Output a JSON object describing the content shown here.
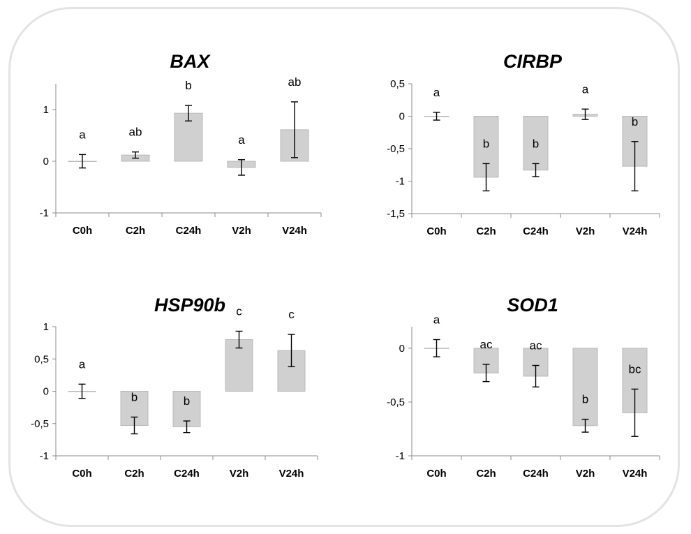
{
  "chart_data": [
    {
      "type": "bar",
      "title": "BAX",
      "categories": [
        "C0h",
        "C2h",
        "C24h",
        "V2h",
        "V24h"
      ],
      "values": [
        0.0,
        0.12,
        0.93,
        -0.12,
        0.61
      ],
      "errors": [
        0.13,
        0.06,
        0.15,
        0.15,
        0.54
      ],
      "significance": [
        "a",
        "ab",
        "b",
        "a",
        "ab"
      ],
      "ylim": [
        -1,
        1.5
      ],
      "yticks": [
        -1,
        0,
        1
      ],
      "ytick_labels": [
        "-1",
        "0",
        "1"
      ],
      "bar_color": "#d0d0d0",
      "grid": false
    },
    {
      "type": "bar",
      "title": "CIRBP",
      "categories": [
        "C0h",
        "C2h",
        "C24h",
        "V2h",
        "V24h"
      ],
      "values": [
        0.0,
        -0.94,
        -0.83,
        0.03,
        -0.77
      ],
      "errors": [
        0.06,
        0.21,
        0.1,
        0.08,
        0.38
      ],
      "significance": [
        "a",
        "b",
        "b",
        "a",
        "b"
      ],
      "ylim": [
        -1.5,
        0.5
      ],
      "yticks": [
        -1.5,
        -1,
        -0.5,
        0,
        0.5
      ],
      "ytick_labels": [
        "-1,5",
        "-1",
        "-0,5",
        "0",
        "0,5"
      ],
      "bar_color": "#d0d0d0",
      "grid": false
    },
    {
      "type": "bar",
      "title": "HSP90b",
      "categories": [
        "C0h",
        "C2h",
        "C24h",
        "V2h",
        "V24h"
      ],
      "values": [
        0.0,
        -0.53,
        -0.55,
        0.8,
        0.63
      ],
      "errors": [
        0.11,
        0.13,
        0.09,
        0.13,
        0.25
      ],
      "significance": [
        "a",
        "b",
        "b",
        "c",
        "c"
      ],
      "ylim": [
        -1,
        1
      ],
      "yticks": [
        -1,
        -0.5,
        0,
        0.5,
        1
      ],
      "ytick_labels": [
        "-1",
        "-0,5",
        "0",
        "0,5",
        "1"
      ],
      "bar_color": "#d0d0d0",
      "grid": false
    },
    {
      "type": "bar",
      "title": "SOD1",
      "categories": [
        "C0h",
        "C2h",
        "C24h",
        "V2h",
        "V24h"
      ],
      "values": [
        0.0,
        -0.23,
        -0.26,
        -0.72,
        -0.6
      ],
      "errors": [
        0.08,
        0.08,
        0.1,
        0.06,
        0.22
      ],
      "significance": [
        "a",
        "ac",
        "ac",
        "b",
        "bc"
      ],
      "ylim": [
        -1,
        0.2
      ],
      "yticks": [
        -1,
        -0.5,
        0
      ],
      "ytick_labels": [
        "-1",
        "-0,5",
        "0"
      ],
      "bar_color": "#d0d0d0",
      "grid": false
    }
  ]
}
